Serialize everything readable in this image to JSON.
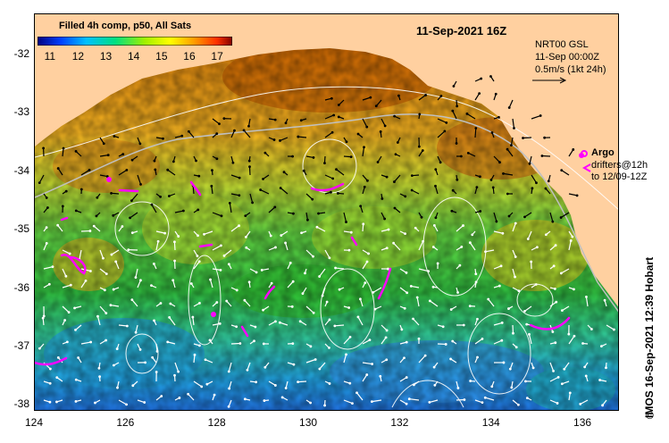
{
  "map": {
    "date_title": "11-Sep-2021 16Z",
    "colorbar": {
      "title": "Filled 4h comp, p50, All Sats",
      "ticks": [
        "11",
        "12",
        "13",
        "14",
        "15",
        "16",
        "17"
      ],
      "min": 10.5,
      "max": 17.5
    },
    "current_info": {
      "line1": "NRT00 GSL",
      "line2": "11-Sep 00:00Z",
      "line3": "0.5m/s (1kt 24h)"
    },
    "argo_legend": {
      "label": "Argo",
      "drifters_line1": "drifters@12h",
      "drifters_line2": "to 12/09-12Z"
    },
    "credit": "IMOS 16-Sep-2021 12:39 Hobart",
    "copyright": "©",
    "lat_ticks": [
      "-32",
      "-33",
      "-34",
      "-35",
      "-36",
      "-37",
      "-38"
    ],
    "lon_ticks": [
      "124",
      "126",
      "128",
      "130",
      "132",
      "134",
      "136"
    ],
    "extent": {
      "lon_min": 124,
      "lon_max": 136.8,
      "lat_min": -38.1,
      "lat_max": -31.3
    },
    "colors": {
      "land": "#ffd0a0",
      "arrow_land_region": "#000000",
      "arrow_sea": "#ffffff",
      "argo": "#ff00ff",
      "contour": "#ffffff",
      "isobath": "#c0c0c0"
    }
  }
}
